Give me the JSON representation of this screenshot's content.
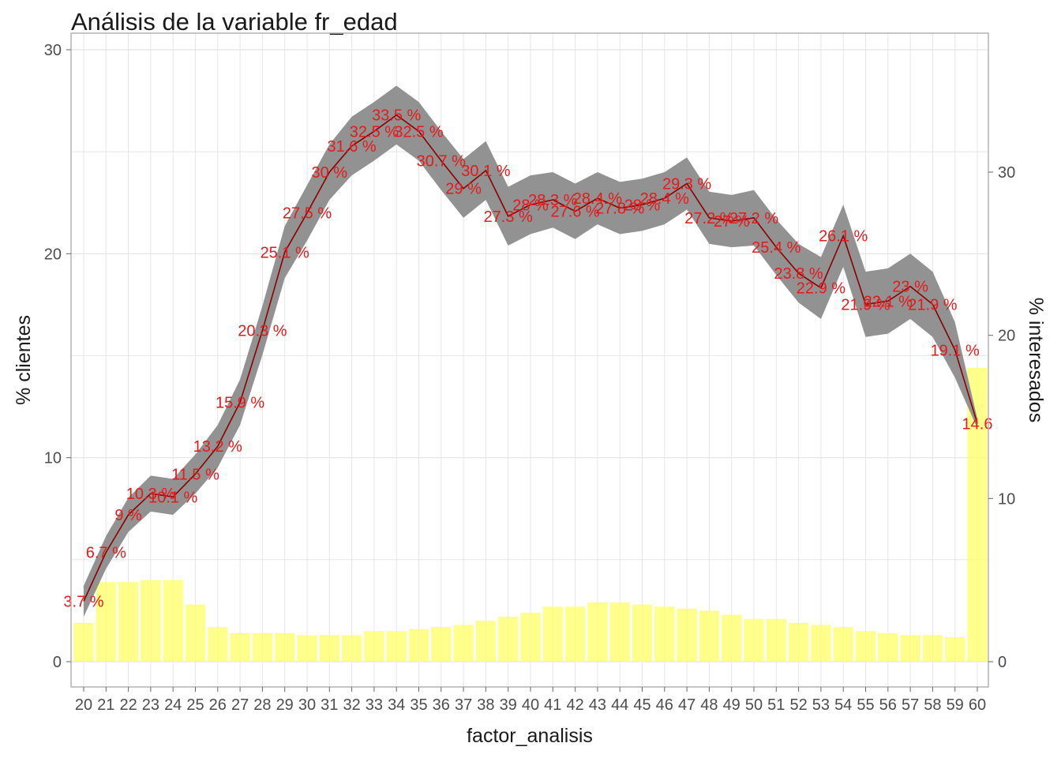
{
  "chart_data": {
    "type": "bar+line",
    "title": "Análisis de la variable fr_edad",
    "xlabel": "factor_analisis",
    "ylabel_left": "% clientes",
    "ylabel_right": "% interesados",
    "categories": [
      "20",
      "21",
      "22",
      "23",
      "24",
      "25",
      "26",
      "27",
      "28",
      "29",
      "30",
      "31",
      "32",
      "33",
      "34",
      "35",
      "36",
      "37",
      "38",
      "39",
      "40",
      "41",
      "42",
      "43",
      "44",
      "45",
      "46",
      "47",
      "48",
      "49",
      "50",
      "51",
      "52",
      "53",
      "54",
      "55",
      "56",
      "57",
      "58",
      "59",
      "60"
    ],
    "bars": {
      "name": "% clientes",
      "color": "#ffff66",
      "values": [
        1.9,
        3.9,
        3.9,
        4.0,
        4.0,
        2.8,
        1.7,
        1.4,
        1.4,
        1.4,
        1.3,
        1.3,
        1.3,
        1.5,
        1.5,
        1.6,
        1.7,
        1.8,
        2.0,
        2.2,
        2.4,
        2.7,
        2.7,
        2.9,
        2.9,
        2.8,
        2.7,
        2.6,
        2.5,
        2.3,
        2.1,
        2.1,
        1.9,
        1.8,
        1.7,
        1.5,
        1.4,
        1.3,
        1.3,
        1.2,
        14.4
      ]
    },
    "line": {
      "name": "% interesados",
      "color": "#8b0000",
      "band_color": "#8c8c8c",
      "values": [
        3.7,
        6.7,
        9,
        10.3,
        10.1,
        11.5,
        13.2,
        15.9,
        20.3,
        25.1,
        27.5,
        30,
        31.6,
        32.5,
        33.5,
        32.5,
        30.7,
        29,
        30.1,
        27.3,
        28,
        28.3,
        27.6,
        28.4,
        27.8,
        28,
        28.4,
        29.3,
        27.2,
        27,
        27.2,
        25.4,
        23.8,
        22.9,
        26.1,
        21.9,
        22.1,
        23,
        21.9,
        19.1,
        14.6
      ],
      "labels": [
        "3.7 %",
        "6.7 %",
        "9 %",
        "10.3 %",
        "10.1 %",
        "11.5 %",
        "13.2 %",
        "15.9 %",
        "20.3 %",
        "25.1 %",
        "27.5 %",
        "30 %",
        "31.6 %",
        "32.5 %",
        "33.5 %",
        "32.5 %",
        "30.7 %",
        "29 %",
        "30.1 %",
        "27.3 %",
        "28 %",
        "28.3 %",
        "27.6 %",
        "28.4 %",
        "27.8 %",
        "28 %",
        "28.4 %",
        "29.3 %",
        "27.2 %",
        "27 %",
        "27.2 %",
        "25.4 %",
        "23.8 %",
        "22.9 %",
        "26.1 %",
        "21.9 %",
        "22.1 %",
        "23 %",
        "21.9 %",
        "19.1 %",
        "14.6"
      ],
      "band_halfwidth": [
        0.95,
        1.0,
        1.05,
        1.1,
        1.1,
        1.2,
        1.3,
        1.4,
        1.5,
        1.6,
        1.7,
        1.7,
        1.8,
        1.8,
        1.8,
        1.8,
        1.8,
        1.8,
        1.8,
        1.8,
        1.8,
        1.7,
        1.7,
        1.6,
        1.6,
        1.6,
        1.6,
        1.6,
        1.6,
        1.6,
        1.7,
        1.7,
        1.8,
        1.9,
        1.9,
        2.0,
        2.0,
        2.0,
        2.0,
        1.7,
        0.3
      ]
    },
    "y_left": {
      "min": 0,
      "max": 30,
      "ticks": [
        "0",
        "10",
        "20",
        "30"
      ]
    },
    "y_right": {
      "min": 0,
      "max": 37.5,
      "ticks": [
        "0",
        "10",
        "20",
        "30"
      ]
    },
    "grid": true,
    "legend": "none"
  }
}
